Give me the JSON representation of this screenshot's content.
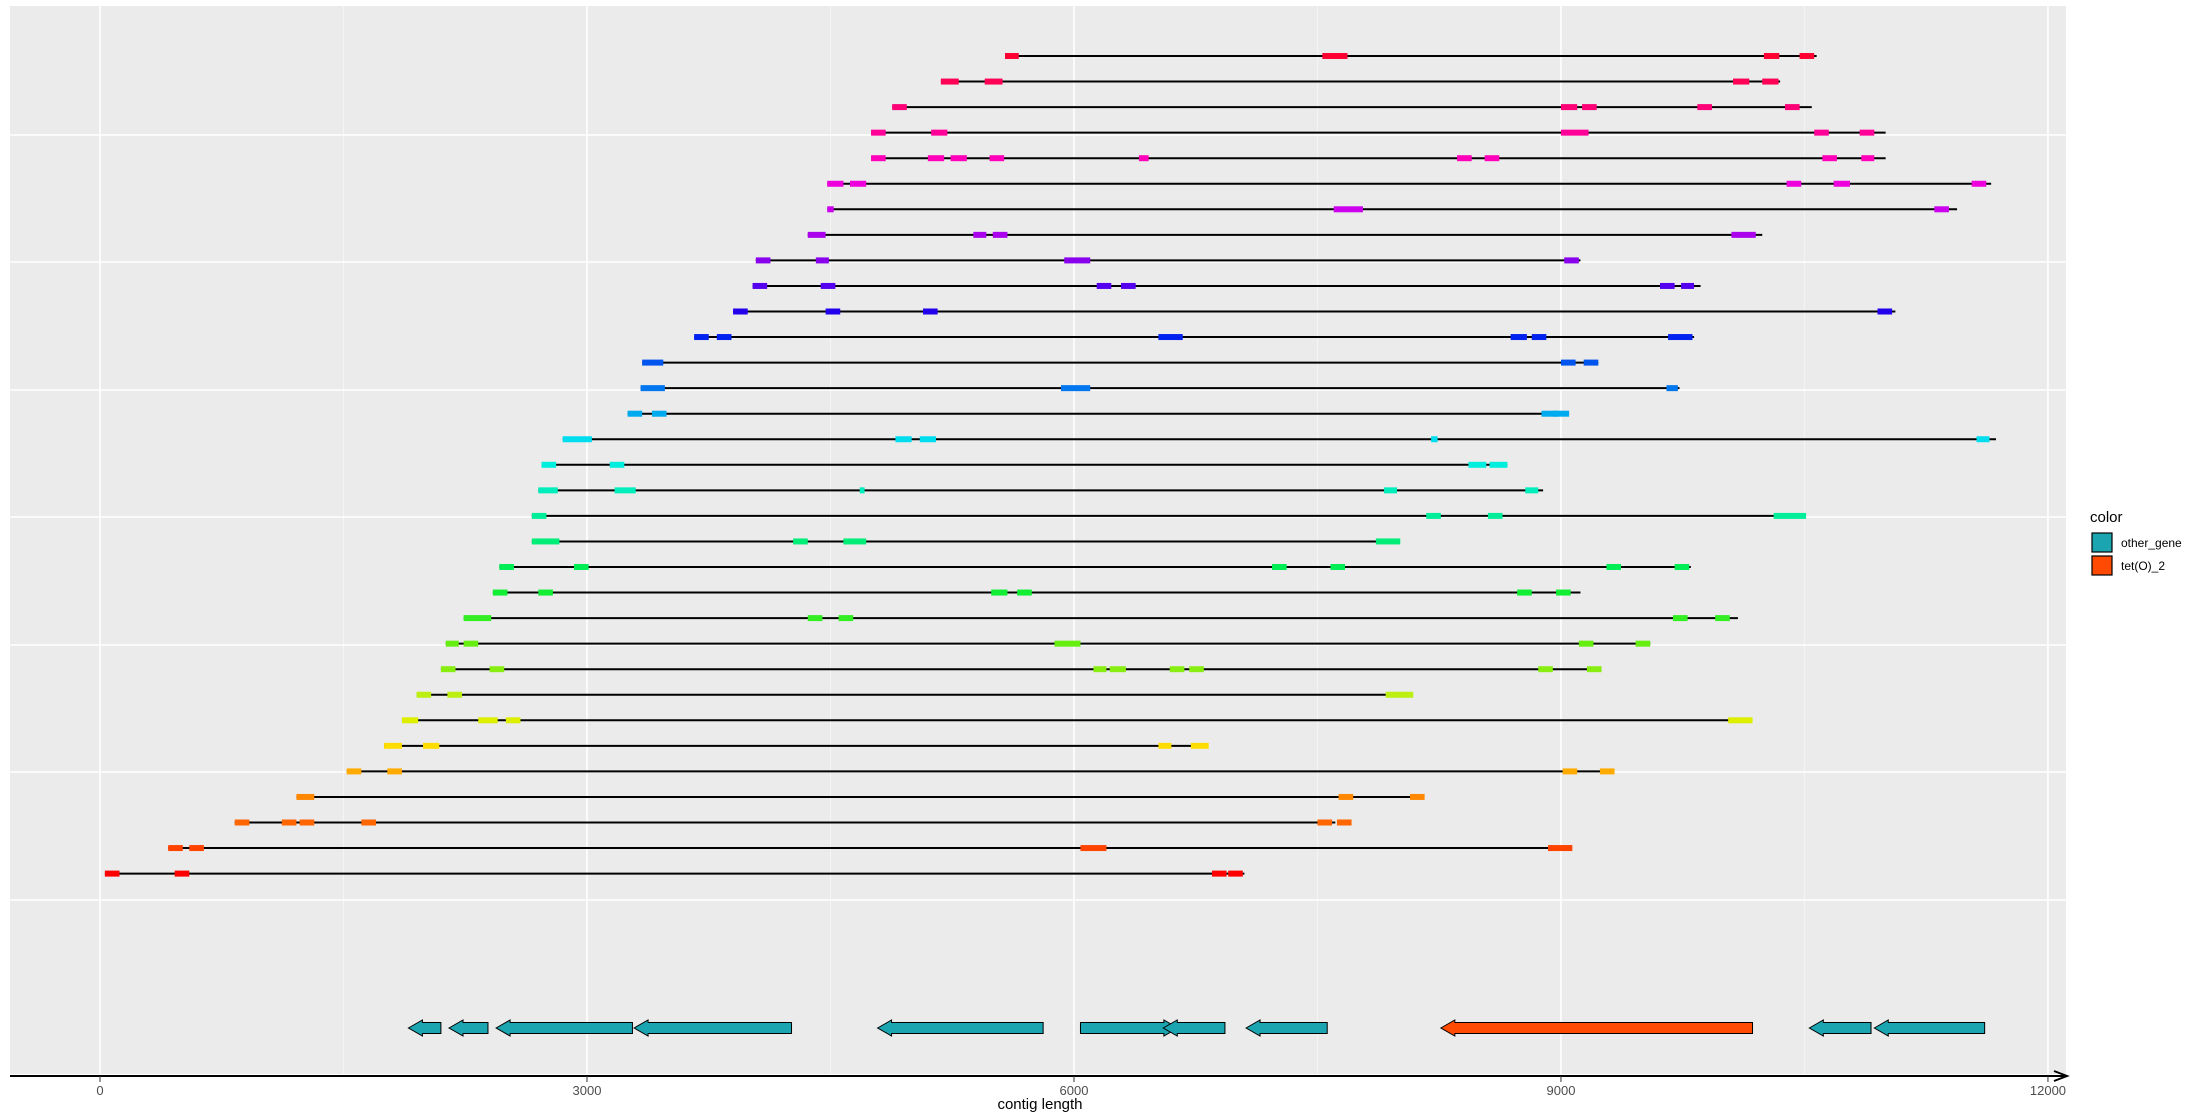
{
  "chart_data": {
    "type": "gene-alignment",
    "title": "",
    "xlabel": "contig length",
    "ylabel": "",
    "xlim": [
      -740,
      12000
    ],
    "xticks": [
      0,
      3000,
      6000,
      9000,
      12000
    ],
    "x_tick_labels": [
      "0",
      "3000",
      "6000",
      "9000",
      "12000"
    ],
    "grid": true,
    "legend": {
      "title": "color",
      "position": "right",
      "entries": [
        {
          "label": "other_gene",
          "color": "#1BA5B0"
        },
        {
          "label": "tet(O)_2",
          "color": "#FF4A03"
        }
      ]
    },
    "contigs": [
      {
        "start": 5575,
        "end": 10575,
        "color": "#FF0033",
        "segments": [
          [
            5575,
            5660
          ],
          [
            7530,
            7685
          ],
          [
            10250,
            10345
          ],
          [
            10470,
            10560
          ]
        ]
      },
      {
        "start": 5180,
        "end": 10350,
        "color": "#FF0055",
        "segments": [
          [
            5180,
            5290
          ],
          [
            5450,
            5560
          ],
          [
            10060,
            10160
          ],
          [
            10240,
            10340
          ]
        ]
      },
      {
        "start": 4880,
        "end": 10545,
        "color": "#FF0077",
        "segments": [
          [
            4880,
            4970
          ],
          [
            9000,
            9100
          ],
          [
            9130,
            9220
          ],
          [
            9840,
            9930
          ],
          [
            10380,
            10470
          ]
        ]
      },
      {
        "start": 4750,
        "end": 11000,
        "color": "#FF0099",
        "segments": [
          [
            4750,
            4840
          ],
          [
            5120,
            5220
          ],
          [
            9000,
            9170
          ],
          [
            10560,
            10650
          ],
          [
            10840,
            10930
          ]
        ]
      },
      {
        "start": 4750,
        "end": 11000,
        "color": "#FF00BB",
        "segments": [
          [
            4750,
            4840
          ],
          [
            5100,
            5200
          ],
          [
            5240,
            5340
          ],
          [
            5480,
            5570
          ],
          [
            6400,
            6460
          ],
          [
            8360,
            8450
          ],
          [
            8530,
            8620
          ],
          [
            10610,
            10700
          ],
          [
            10850,
            10930
          ]
        ]
      },
      {
        "start": 4480,
        "end": 11650,
        "color": "#EE00DD",
        "segments": [
          [
            4480,
            4580
          ],
          [
            4620,
            4720
          ],
          [
            10390,
            10480
          ],
          [
            10680,
            10780
          ],
          [
            11530,
            11620
          ]
        ]
      },
      {
        "start": 4480,
        "end": 11440,
        "color": "#CC00EE",
        "segments": [
          [
            4480,
            4520
          ],
          [
            7600,
            7780
          ],
          [
            11300,
            11390
          ]
        ]
      },
      {
        "start": 4360,
        "end": 10240,
        "color": "#AA00EE",
        "segments": [
          [
            4360,
            4470
          ],
          [
            5380,
            5460
          ],
          [
            5500,
            5590
          ],
          [
            10050,
            10200
          ]
        ]
      },
      {
        "start": 4040,
        "end": 9120,
        "color": "#8800EE",
        "segments": [
          [
            4040,
            4130
          ],
          [
            4410,
            4490
          ],
          [
            5940,
            6100
          ],
          [
            9020,
            9110
          ]
        ]
      },
      {
        "start": 4020,
        "end": 9860,
        "color": "#5500EE",
        "segments": [
          [
            4020,
            4110
          ],
          [
            4440,
            4530
          ],
          [
            6140,
            6230
          ],
          [
            6290,
            6380
          ],
          [
            9610,
            9700
          ],
          [
            9740,
            9820
          ]
        ]
      },
      {
        "start": 3900,
        "end": 11060,
        "color": "#2200EE",
        "segments": [
          [
            3900,
            3990
          ],
          [
            4470,
            4560
          ],
          [
            5070,
            5160
          ],
          [
            10950,
            11040
          ]
        ]
      },
      {
        "start": 3660,
        "end": 9820,
        "color": "#0022EE",
        "segments": [
          [
            3660,
            3750
          ],
          [
            3800,
            3890
          ],
          [
            6520,
            6670
          ],
          [
            8690,
            8790
          ],
          [
            8820,
            8910
          ],
          [
            9660,
            9810
          ]
        ]
      },
      {
        "start": 3340,
        "end": 9230,
        "color": "#0055EE",
        "segments": [
          [
            3340,
            3470
          ],
          [
            9000,
            9090
          ],
          [
            9140,
            9230
          ]
        ]
      },
      {
        "start": 3330,
        "end": 9730,
        "color": "#0077EE",
        "segments": [
          [
            3330,
            3480
          ],
          [
            5920,
            6100
          ],
          [
            9650,
            9720
          ]
        ]
      },
      {
        "start": 3250,
        "end": 9050,
        "color": "#00AAEE",
        "segments": [
          [
            3250,
            3340
          ],
          [
            3400,
            3490
          ],
          [
            8880,
            8980
          ],
          [
            8950,
            9050
          ]
        ]
      },
      {
        "start": 2850,
        "end": 11680,
        "color": "#00DDEE",
        "segments": [
          [
            2850,
            3030
          ],
          [
            4900,
            5000
          ],
          [
            5050,
            5150
          ],
          [
            8200,
            8240
          ],
          [
            11560,
            11640
          ]
        ]
      },
      {
        "start": 2720,
        "end": 8670,
        "color": "#00EEDD",
        "segments": [
          [
            2720,
            2810
          ],
          [
            3140,
            3230
          ],
          [
            8430,
            8540
          ],
          [
            8560,
            8670
          ]
        ]
      },
      {
        "start": 2700,
        "end": 8890,
        "color": "#00EEBB",
        "segments": [
          [
            2700,
            2820
          ],
          [
            3170,
            3300
          ],
          [
            4680,
            4710
          ],
          [
            7910,
            7990
          ],
          [
            8780,
            8860
          ]
        ]
      },
      {
        "start": 2660,
        "end": 10500,
        "color": "#00EE99",
        "segments": [
          [
            2660,
            2750
          ],
          [
            8170,
            8260
          ],
          [
            8550,
            8640
          ],
          [
            10310,
            10510
          ]
        ]
      },
      {
        "start": 2660,
        "end": 7940,
        "color": "#00EE77",
        "segments": [
          [
            2660,
            2830
          ],
          [
            4270,
            4360
          ],
          [
            4580,
            4720
          ],
          [
            7860,
            8010
          ]
        ]
      },
      {
        "start": 2460,
        "end": 9800,
        "color": "#00EE55",
        "segments": [
          [
            2460,
            2550
          ],
          [
            2920,
            3010
          ],
          [
            7220,
            7310
          ],
          [
            7580,
            7670
          ],
          [
            9280,
            9370
          ],
          [
            9700,
            9790
          ]
        ]
      },
      {
        "start": 2420,
        "end": 9120,
        "color": "#11EE33",
        "segments": [
          [
            2420,
            2510
          ],
          [
            2700,
            2790
          ],
          [
            5490,
            5590
          ],
          [
            5650,
            5740
          ],
          [
            8730,
            8820
          ],
          [
            8970,
            9060
          ]
        ]
      },
      {
        "start": 2240,
        "end": 10090,
        "color": "#33EE22",
        "segments": [
          [
            2240,
            2410
          ],
          [
            4360,
            4450
          ],
          [
            4550,
            4640
          ],
          [
            9690,
            9780
          ],
          [
            9950,
            10040
          ]
        ]
      },
      {
        "start": 2130,
        "end": 9550,
        "color": "#66EE11",
        "segments": [
          [
            2130,
            2210
          ],
          [
            2240,
            2330
          ],
          [
            5880,
            6040
          ],
          [
            9110,
            9200
          ],
          [
            9460,
            9550
          ]
        ]
      },
      {
        "start": 2100,
        "end": 9230,
        "color": "#88EE11",
        "segments": [
          [
            2100,
            2190
          ],
          [
            2400,
            2490
          ],
          [
            6120,
            6200
          ],
          [
            6220,
            6320
          ],
          [
            6590,
            6680
          ],
          [
            6710,
            6800
          ],
          [
            8860,
            8950
          ],
          [
            9160,
            9250
          ]
        ]
      },
      {
        "start": 1950,
        "end": 8000,
        "color": "#BBEE11",
        "segments": [
          [
            1950,
            2040
          ],
          [
            2140,
            2230
          ],
          [
            7920,
            8090
          ]
        ]
      },
      {
        "start": 1860,
        "end": 10120,
        "color": "#DDEE00",
        "segments": [
          [
            1860,
            1960
          ],
          [
            2330,
            2450
          ],
          [
            2500,
            2590
          ],
          [
            10030,
            10180
          ]
        ]
      },
      {
        "start": 1750,
        "end": 6800,
        "color": "#FFDD00",
        "segments": [
          [
            1750,
            1860
          ],
          [
            1990,
            2090
          ],
          [
            6520,
            6600
          ],
          [
            6720,
            6830
          ]
        ]
      },
      {
        "start": 1520,
        "end": 9260,
        "color": "#FFAA00",
        "segments": [
          [
            1520,
            1610
          ],
          [
            1770,
            1860
          ],
          [
            9010,
            9100
          ],
          [
            9240,
            9330
          ]
        ]
      },
      {
        "start": 1210,
        "end": 8130,
        "color": "#FF8800",
        "segments": [
          [
            1210,
            1320
          ],
          [
            7630,
            7720
          ],
          [
            8070,
            8160
          ]
        ]
      },
      {
        "start": 830,
        "end": 7610,
        "color": "#FF6600",
        "segments": [
          [
            830,
            920
          ],
          [
            1120,
            1210
          ],
          [
            1230,
            1320
          ],
          [
            1610,
            1700
          ],
          [
            7500,
            7590
          ],
          [
            7620,
            7710
          ]
        ]
      },
      {
        "start": 420,
        "end": 9040,
        "color": "#FF4400",
        "segments": [
          [
            420,
            510
          ],
          [
            550,
            640
          ],
          [
            6040,
            6200
          ],
          [
            8920,
            9070
          ]
        ]
      },
      {
        "start": 30,
        "end": 7050,
        "color": "#FF0000",
        "segments": [
          [
            30,
            120
          ],
          [
            460,
            550
          ],
          [
            6850,
            6940
          ],
          [
            6950,
            7040
          ]
        ]
      }
    ],
    "genes": [
      {
        "start": 1900,
        "end": 2100,
        "strand": "-",
        "type": "other_gene"
      },
      {
        "start": 2150,
        "end": 2390,
        "strand": "-",
        "type": "other_gene"
      },
      {
        "start": 2440,
        "end": 3280,
        "strand": "-",
        "type": "other_gene"
      },
      {
        "start": 3290,
        "end": 4260,
        "strand": "-",
        "type": "other_gene"
      },
      {
        "start": 4790,
        "end": 5810,
        "strand": "-",
        "type": "other_gene"
      },
      {
        "start": 6040,
        "end": 6640,
        "strand": "+",
        "type": "other_gene"
      },
      {
        "start": 6550,
        "end": 6930,
        "strand": "-",
        "type": "other_gene"
      },
      {
        "start": 7060,
        "end": 7560,
        "strand": "-",
        "type": "other_gene"
      },
      {
        "start": 8260,
        "end": 10180,
        "strand": "-",
        "type": "tet(O)_2"
      },
      {
        "start": 10530,
        "end": 10910,
        "strand": "-",
        "type": "other_gene"
      },
      {
        "start": 10930,
        "end": 11610,
        "strand": "-",
        "type": "other_gene"
      }
    ]
  }
}
